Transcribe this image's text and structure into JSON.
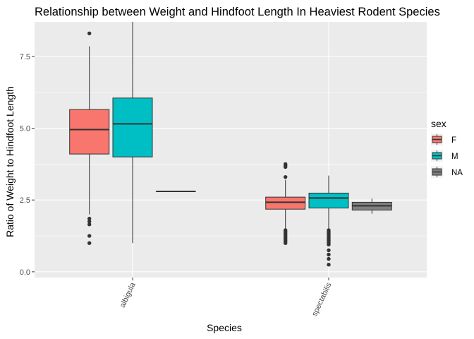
{
  "chart_data": {
    "type": "boxplot",
    "title": "Relationship between Weight and Hindfoot Length In Heaviest Rodent Species",
    "xlabel": "Species",
    "ylabel": "Ratio of Weight to Hindfoot Length",
    "categories": [
      "albigula",
      "spectabilis"
    ],
    "ylim": [
      -0.2,
      8.7
    ],
    "yticks": [
      0.0,
      2.5,
      5.0,
      7.5
    ],
    "yticklabels": [
      "0.0",
      "2.5",
      "5.0",
      "7.5"
    ],
    "grid": true,
    "background": "#ebebeb",
    "legend": {
      "title": "sex",
      "position": "right",
      "entries": [
        "F",
        "M",
        "NA"
      ]
    },
    "series": [
      {
        "name": "F",
        "color": "#f8766d",
        "boxes": [
          {
            "category": "albigula",
            "lower_whisker": 2.0,
            "q1": 4.1,
            "median": 4.95,
            "q3": 5.65,
            "upper_whisker": 7.85,
            "outliers": [
              8.3,
              1.85,
              1.75,
              1.65,
              1.25,
              1.0
            ]
          },
          {
            "category": "spectabilis",
            "lower_whisker": 1.45,
            "q1": 2.18,
            "median": 2.42,
            "q3": 2.6,
            "upper_whisker": 3.2,
            "outliers": [
              3.75,
              3.7,
              3.65,
              3.3,
              1.45,
              1.4,
              1.35,
              1.3,
              1.25,
              1.2,
              1.15,
              1.1,
              1.05,
              1.0
            ]
          }
        ]
      },
      {
        "name": "M",
        "color": "#00bfc4",
        "boxes": [
          {
            "category": "albigula",
            "lower_whisker": 1.0,
            "q1": 4.0,
            "median": 5.15,
            "q3": 6.05,
            "upper_whisker": 8.7,
            "outliers": []
          },
          {
            "category": "spectabilis",
            "lower_whisker": 1.5,
            "q1": 2.22,
            "median": 2.57,
            "q3": 2.74,
            "upper_whisker": 3.35,
            "outliers": [
              1.45,
              1.4,
              1.35,
              1.3,
              1.25,
              1.2,
              1.15,
              1.1,
              1.05,
              1.0,
              0.95,
              0.75,
              0.6,
              0.45,
              0.25
            ]
          }
        ]
      },
      {
        "name": "NA",
        "color": "#7f7f7f",
        "boxes": [
          {
            "category": "albigula",
            "lower_whisker": 2.8,
            "q1": 2.8,
            "median": 2.8,
            "q3": 2.8,
            "upper_whisker": 2.8,
            "outliers": []
          },
          {
            "category": "spectabilis",
            "lower_whisker": 2.02,
            "q1": 2.15,
            "median": 2.3,
            "q3": 2.42,
            "upper_whisker": 2.55,
            "outliers": []
          }
        ]
      }
    ]
  }
}
